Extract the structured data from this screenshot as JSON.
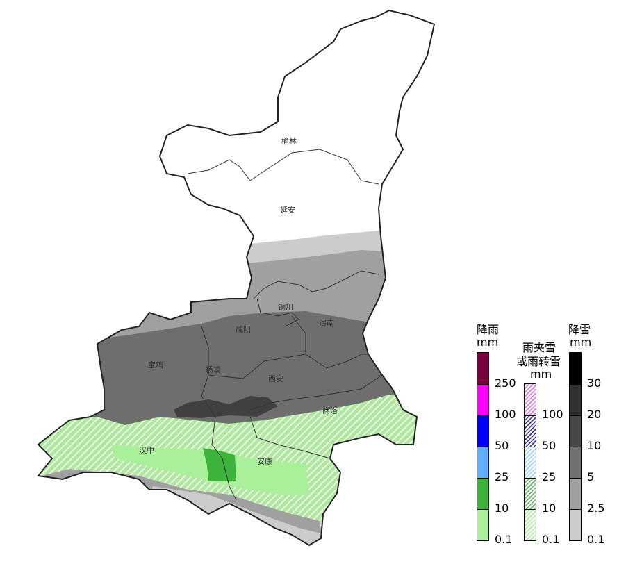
{
  "map": {
    "cities": [
      {
        "id": "yulin",
        "name": "榆林"
      },
      {
        "id": "yanan",
        "name": "延安"
      },
      {
        "id": "tongchuan",
        "name": "铜川"
      },
      {
        "id": "weinan",
        "name": "渭南"
      },
      {
        "id": "xianyang",
        "name": "咸阳"
      },
      {
        "id": "baoji",
        "name": "宝鸡"
      },
      {
        "id": "yangling",
        "name": "杨凌"
      },
      {
        "id": "xian",
        "name": "西安"
      },
      {
        "id": "shangluo",
        "name": "商洛"
      },
      {
        "id": "hanzhong",
        "name": "汉中"
      },
      {
        "id": "ankang",
        "name": "安康"
      }
    ]
  },
  "legend": {
    "rain": {
      "title": "降雨",
      "unit": "mm",
      "colors": [
        "#7a0040",
        "#ff00ff",
        "#0000ff",
        "#60b0ff",
        "#3cb43c",
        "#aaf09a"
      ],
      "ticks": [
        "250",
        "100",
        "50",
        "25",
        "10",
        "0.1"
      ]
    },
    "sleet": {
      "title_line1": "雨夹雪",
      "title_line2": "或雨转雪",
      "unit": "mm",
      "colors": [
        "#e070e0",
        "#3030b0",
        "#a0d0f0",
        "#60b060",
        "#b0e8a0"
      ],
      "ticks": [
        "100",
        "50",
        "25",
        "10",
        "0.1"
      ]
    },
    "snow": {
      "title": "降雪",
      "unit": "mm",
      "colors": [
        "#000000",
        "#303030",
        "#474747",
        "#707070",
        "#a0a0a0",
        "#cccccc"
      ],
      "ticks": [
        "30",
        "20",
        "10",
        "5",
        "2.5",
        "0.1"
      ]
    }
  }
}
